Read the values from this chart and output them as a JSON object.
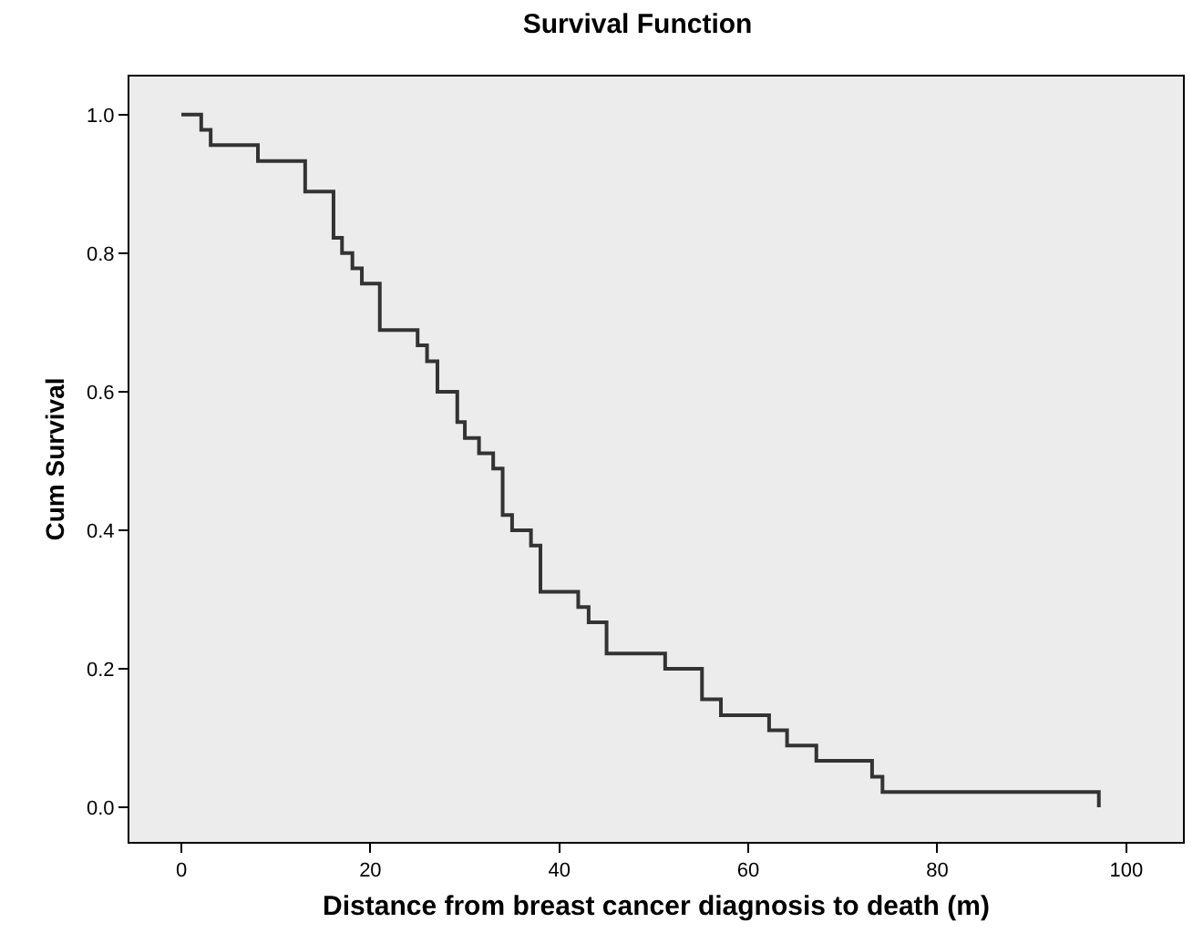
{
  "chart_data": {
    "type": "step",
    "title": "Survival Function",
    "xlabel": "Distance from breast cancer diagnosis to death (m)",
    "ylabel": "Cum Survival",
    "x": [
      0,
      2.1,
      3.1,
      8.1,
      13.1,
      16.1,
      17,
      18.1,
      19.1,
      21,
      25,
      26,
      27.1,
      29.2,
      30,
      31.5,
      33,
      34,
      35,
      37,
      38,
      42,
      43.1,
      45,
      51.2,
      55.1,
      57.1,
      62.2,
      64.1,
      67.2,
      73.1,
      74.2,
      97.1,
      97.1
    ],
    "series": [
      {
        "color": "#333333",
        "values": [
          1.0,
          0.978,
          0.956,
          0.933,
          0.889,
          0.822,
          0.8,
          0.778,
          0.756,
          0.689,
          0.667,
          0.644,
          0.6,
          0.556,
          0.533,
          0.511,
          0.489,
          0.422,
          0.4,
          0.378,
          0.311,
          0.289,
          0.267,
          0.222,
          0.2,
          0.156,
          0.133,
          0.111,
          0.089,
          0.067,
          0.044,
          0.022,
          0.022,
          0.0
        ]
      }
    ],
    "xlim": [
      -5.5,
      106
    ],
    "xticks": [
      0,
      20,
      40,
      60,
      80,
      100
    ],
    "ylim": [
      -0.05,
      1.055
    ],
    "yticks": [
      {
        "value": 0,
        "label": "0.0"
      },
      {
        "value": 0.2,
        "label": "0.2"
      },
      {
        "value": 0.4,
        "label": "0.4"
      },
      {
        "value": 0.6,
        "label": "0.6"
      },
      {
        "value": 0.8,
        "label": "0.8"
      },
      {
        "value": 1,
        "label": "1.0"
      }
    ],
    "grid": false,
    "marker": "none",
    "line_style": "solid"
  }
}
